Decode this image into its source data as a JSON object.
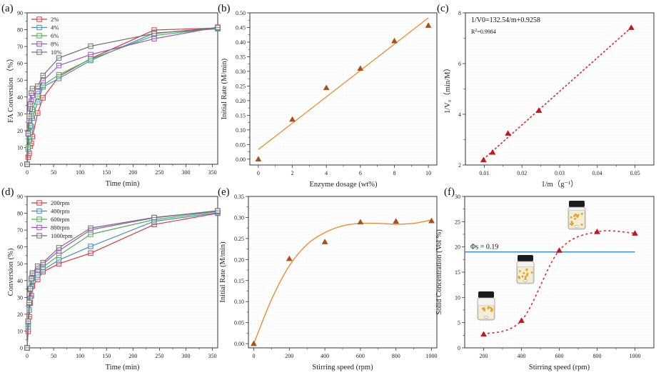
{
  "chart_data": [
    {
      "id": "a",
      "panel_label": "(a)",
      "type": "line",
      "xlabel": "Time (min)",
      "ylabel": "FA Conversion （%）",
      "xlim": [
        0,
        360
      ],
      "ylim": [
        0,
        90
      ],
      "xticks": [
        0,
        50,
        100,
        150,
        200,
        250,
        300,
        350
      ],
      "yticks": [
        0,
        10,
        20,
        30,
        40,
        50,
        60,
        70,
        80,
        90
      ],
      "legend_position": "top-left",
      "marker": "square",
      "x": [
        0,
        2,
        4,
        6,
        8,
        10,
        20,
        30,
        60,
        120,
        240,
        360
      ],
      "series": [
        {
          "name": "2%",
          "color": "#e0383a",
          "values": [
            0,
            4.2,
            6.5,
            10.8,
            12.5,
            16.5,
            30.5,
            39.5,
            52.2,
            62.8,
            79.8,
            81.0
          ]
        },
        {
          "name": "4%",
          "color": "#3c8dc8",
          "values": [
            0,
            9.0,
            14.5,
            19.0,
            22.5,
            27.5,
            37.0,
            46.0,
            51.0,
            61.7,
            78.0,
            80.5
          ]
        },
        {
          "name": "6%",
          "color": "#4caf50",
          "values": [
            0,
            10.2,
            16.5,
            23.0,
            28.5,
            32.5,
            40.5,
            47.0,
            53.2,
            62.5,
            76.5,
            81.0
          ]
        },
        {
          "name": "8%",
          "color": "#9c4fc6",
          "values": [
            0,
            18.0,
            26.0,
            33.0,
            37.5,
            41.0,
            43.2,
            49.7,
            58.7,
            65.2,
            74.6,
            81.5
          ]
        },
        {
          "name": "10%",
          "color": "#707070",
          "values": [
            0,
            18.3,
            28.5,
            35.7,
            42.3,
            45.0,
            46.4,
            52.8,
            63.2,
            70.2,
            77.7,
            81.3
          ]
        }
      ]
    },
    {
      "id": "b",
      "panel_label": "(b)",
      "type": "scatter",
      "xlabel": "Enzyme dosage (wt%)",
      "ylabel": "Initial Rate (M/min)",
      "xlim": [
        -0.5,
        10.5
      ],
      "ylim": [
        -0.02,
        0.5
      ],
      "xticks": [
        0,
        2,
        4,
        6,
        8,
        10
      ],
      "yticks": [
        "0.00",
        "0.05",
        "0.10",
        "0.15",
        "0.20",
        "0.25",
        "0.30",
        "0.35",
        "0.40",
        "0.45",
        "0.50"
      ],
      "marker": "triangle",
      "marker_color": "#a9501a",
      "fit_color": "#f08a30",
      "points": {
        "x": [
          0,
          2,
          4,
          6,
          8,
          10
        ],
        "y": [
          0.0,
          0.136,
          0.244,
          0.31,
          0.404,
          0.457
        ]
      },
      "fit_line": {
        "x": [
          0,
          10
        ],
        "y": [
          0.033,
          0.483
        ]
      }
    },
    {
      "id": "c",
      "panel_label": "(c)",
      "type": "scatter",
      "xlabel": "1/m（g⁻¹）",
      "ylabel": "1/V₀（min/M）",
      "xlim": [
        0.005,
        0.055
      ],
      "ylim": [
        2,
        8
      ],
      "xticks": [
        "0.01",
        "0.02",
        "0.03",
        "0.04",
        "0.05"
      ],
      "yticks": [
        2,
        4,
        6,
        8
      ],
      "marker": "triangle",
      "marker_color": "#c4161c",
      "fit_color": "#e0383a",
      "fit_style": "dotted",
      "annotations": {
        "equation": "1/V0=132.54/m+0.9258",
        "r2_label": "R",
        "r2_sup": "2",
        "r2_value": "=0.9984"
      },
      "points": {
        "x": [
          0.0098,
          0.0122,
          0.0163,
          0.0245,
          0.049
        ],
        "y": [
          2.2,
          2.5,
          3.25,
          4.15,
          7.42
        ]
      },
      "fit_line": {
        "x": [
          0.0098,
          0.049
        ],
        "y": [
          2.23,
          7.42
        ]
      }
    },
    {
      "id": "d",
      "panel_label": "(d)",
      "type": "line",
      "xlabel": "Time (min)",
      "ylabel": "Conversion (%)",
      "xlim": [
        0,
        360
      ],
      "ylim": [
        0,
        90
      ],
      "xticks": [
        0,
        50,
        100,
        150,
        200,
        250,
        300,
        350
      ],
      "yticks": [
        0,
        10,
        20,
        30,
        40,
        50,
        60,
        70,
        80,
        90
      ],
      "legend_position": "top-left",
      "marker": "square",
      "x": [
        0,
        2,
        4,
        6,
        8,
        10,
        20,
        30,
        60,
        120,
        240,
        360
      ],
      "series": [
        {
          "name": "200rpm",
          "color": "#e0383a",
          "values": [
            0,
            9.8,
            18.5,
            26.5,
            31.0,
            36.8,
            40.7,
            45.2,
            50.0,
            56.3,
            73.3,
            80.0
          ]
        },
        {
          "name": "400rpm",
          "color": "#3c8dc8",
          "values": [
            0,
            12.5,
            22.5,
            29.3,
            36.3,
            41.5,
            43.3,
            46.3,
            52.2,
            60.3,
            75.2,
            80.3
          ]
        },
        {
          "name": "600rpm",
          "color": "#4caf50",
          "values": [
            0,
            14.5,
            26.5,
            34.5,
            40.0,
            43.0,
            46.0,
            48.0,
            55.0,
            67.5,
            76.2,
            81.0
          ]
        },
        {
          "name": "800rpm",
          "color": "#9c4fc6",
          "values": [
            0,
            15.5,
            26.8,
            35.0,
            41.0,
            44.0,
            46.5,
            49.8,
            57.7,
            70.2,
            77.3,
            81.3
          ]
        },
        {
          "name": "1000rpm",
          "color": "#707070",
          "values": [
            0,
            15.9,
            27.0,
            35.2,
            41.2,
            44.5,
            48.5,
            50.7,
            59.5,
            71.2,
            77.5,
            81.5
          ]
        }
      ]
    },
    {
      "id": "e",
      "panel_label": "(e)",
      "type": "scatter",
      "xlabel": "Stirring speed (rpm)",
      "ylabel": "Initial Rate (M/min)",
      "xlim": [
        -30,
        1030
      ],
      "ylim": [
        -0.01,
        0.35
      ],
      "xticks": [
        0,
        200,
        400,
        600,
        800,
        1000
      ],
      "yticks": [
        "0.00",
        "0.05",
        "0.10",
        "0.15",
        "0.20",
        "0.25",
        "0.30",
        "0.35"
      ],
      "marker": "triangle",
      "marker_color": "#a9501a",
      "fit_color": "#f08a30",
      "points": {
        "x": [
          0,
          200,
          400,
          600,
          800,
          1000
        ],
        "y": [
          0.0,
          0.202,
          0.242,
          0.289,
          0.291,
          0.292
        ]
      },
      "fit_curve": {
        "x": [
          0,
          100,
          200,
          300,
          400,
          500,
          600,
          700,
          800,
          900,
          1000
        ],
        "y": [
          0.0,
          0.105,
          0.185,
          0.236,
          0.264,
          0.28,
          0.286,
          0.286,
          0.284,
          0.286,
          0.294
        ]
      }
    },
    {
      "id": "f",
      "panel_label": "(f)",
      "type": "scatter",
      "xlabel": "Stirring speed (rpm)",
      "ylabel": "Solid Concentration (Vol %)",
      "xlim": [
        100,
        1100
      ],
      "ylim": [
        0,
        30
      ],
      "xticks": [
        200,
        400,
        600,
        800,
        1000
      ],
      "yticks": [
        0,
        5,
        10,
        15,
        20,
        25,
        30
      ],
      "marker": "triangle",
      "marker_color": "#c4161c",
      "fit_color": "#e0383a",
      "fit_style": "dotted",
      "reference_line": {
        "label": "Φs = 0.19",
        "y": 19,
        "color": "#3d8fd6"
      },
      "points": {
        "x": [
          200,
          400,
          600,
          800,
          1000
        ],
        "y": [
          2.7,
          5.4,
          19.3,
          23.0,
          22.7
        ]
      },
      "vial_illustrations": [
        "vial-low-suspension",
        "vial-mid-suspension",
        "vial-full-suspension"
      ]
    }
  ]
}
